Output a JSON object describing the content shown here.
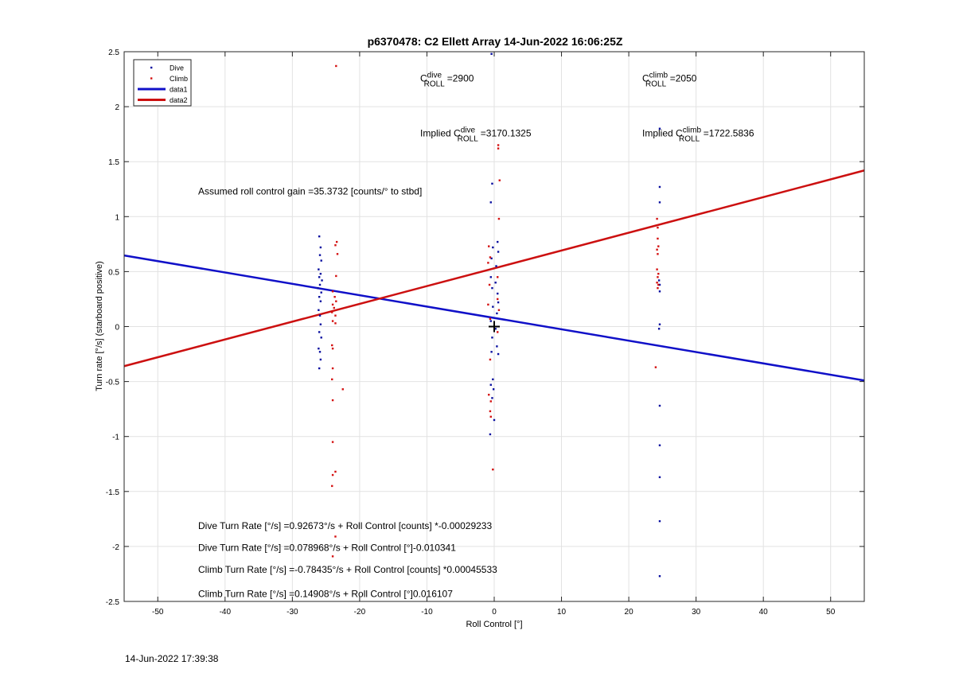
{
  "footer_timestamp": "14-Jun-2022 17:39:38",
  "chart_data": {
    "type": "scatter",
    "title": "p6370478: C2 Ellett Array 14-Jun-2022 16:06:25Z",
    "xlabel": "Roll Control [°]",
    "ylabel": "Turn rate [°/s] (starboard positive)",
    "xlim": [
      -55,
      55
    ],
    "ylim": [
      -2.5,
      2.5
    ],
    "xticks": [
      -50,
      -40,
      -30,
      -20,
      -10,
      0,
      10,
      20,
      30,
      40,
      50
    ],
    "yticks": [
      -2.5,
      -2,
      -1.5,
      -1,
      -0.5,
      0,
      0.5,
      1,
      1.5,
      2,
      2.5
    ],
    "grid": true,
    "legend_position": "top-left",
    "legend": [
      "Dive",
      "Climb",
      "data1",
      "data2"
    ],
    "colors": {
      "dive": "#0a10a0",
      "climb": "#d41010",
      "data1": "#1010c8",
      "data2": "#cc1010"
    },
    "series": [
      {
        "name": "Dive",
        "style": "points",
        "points": [
          [
            -26.0,
            0.82
          ],
          [
            -25.8,
            0.72
          ],
          [
            -25.9,
            0.65
          ],
          [
            -25.7,
            0.6
          ],
          [
            -26.1,
            0.52
          ],
          [
            -25.8,
            0.48
          ],
          [
            -26.0,
            0.45
          ],
          [
            -25.6,
            0.42
          ],
          [
            -25.9,
            0.38
          ],
          [
            -26.2,
            0.35
          ],
          [
            -25.7,
            0.31
          ],
          [
            -26.0,
            0.27
          ],
          [
            -25.8,
            0.23
          ],
          [
            -26.1,
            0.15
          ],
          [
            -25.9,
            0.1
          ],
          [
            -25.8,
            0.02
          ],
          [
            -26.0,
            -0.05
          ],
          [
            -25.7,
            -0.1
          ],
          [
            -26.1,
            -0.2
          ],
          [
            -25.9,
            -0.23
          ],
          [
            -25.8,
            -0.3
          ],
          [
            -26.0,
            -0.38
          ],
          [
            -0.4,
            2.48
          ],
          [
            -0.3,
            1.3
          ],
          [
            -0.5,
            1.13
          ],
          [
            0.5,
            0.77
          ],
          [
            -0.2,
            0.72
          ],
          [
            0.6,
            0.68
          ],
          [
            -0.4,
            0.62
          ],
          [
            0.3,
            0.55
          ],
          [
            -0.5,
            0.45
          ],
          [
            0.2,
            0.4
          ],
          [
            -0.3,
            0.35
          ],
          [
            0.5,
            0.3
          ],
          [
            0.6,
            0.22
          ],
          [
            -0.2,
            0.18
          ],
          [
            0.4,
            0.12
          ],
          [
            -0.5,
            0.05
          ],
          [
            0.2,
            -0.02
          ],
          [
            -0.3,
            -0.1
          ],
          [
            0.4,
            -0.18
          ],
          [
            -0.4,
            -0.23
          ],
          [
            0.6,
            -0.25
          ],
          [
            -0.2,
            -0.48
          ],
          [
            -0.5,
            -0.53
          ],
          [
            -0.1,
            -0.57
          ],
          [
            -0.3,
            -0.65
          ],
          [
            0.0,
            -0.85
          ],
          [
            -0.6,
            -0.98
          ],
          [
            24.6,
            1.8
          ],
          [
            24.6,
            1.27
          ],
          [
            24.6,
            1.13
          ],
          [
            24.5,
            0.42
          ],
          [
            24.6,
            0.38
          ],
          [
            24.6,
            0.32
          ],
          [
            24.6,
            0.02
          ],
          [
            24.5,
            -0.02
          ],
          [
            24.6,
            -0.72
          ],
          [
            24.6,
            -1.08
          ],
          [
            24.6,
            -1.37
          ],
          [
            24.6,
            -1.77
          ],
          [
            24.6,
            -2.27
          ]
        ]
      },
      {
        "name": "Climb",
        "style": "points",
        "points": [
          [
            -23.5,
            2.37
          ],
          [
            -23.4,
            0.77
          ],
          [
            -23.6,
            0.74
          ],
          [
            -23.3,
            0.66
          ],
          [
            -23.5,
            0.46
          ],
          [
            -24.0,
            0.32
          ],
          [
            -23.7,
            0.27
          ],
          [
            -23.5,
            0.23
          ],
          [
            -24.0,
            0.2
          ],
          [
            -23.8,
            0.17
          ],
          [
            -24.1,
            0.13
          ],
          [
            -23.6,
            0.1
          ],
          [
            -24.0,
            0.05
          ],
          [
            -23.6,
            0.03
          ],
          [
            -24.1,
            -0.17
          ],
          [
            -24.0,
            -0.2
          ],
          [
            -24.0,
            -0.38
          ],
          [
            -24.1,
            -0.48
          ],
          [
            -22.5,
            -0.57
          ],
          [
            -24.0,
            -0.67
          ],
          [
            -24.0,
            -1.05
          ],
          [
            -23.6,
            -1.32
          ],
          [
            -24.0,
            -1.35
          ],
          [
            -24.1,
            -1.45
          ],
          [
            -23.6,
            -1.91
          ],
          [
            -24.0,
            -2.09
          ],
          [
            0.6,
            1.65
          ],
          [
            0.6,
            1.62
          ],
          [
            0.8,
            1.33
          ],
          [
            0.7,
            0.98
          ],
          [
            -0.8,
            0.73
          ],
          [
            -0.6,
            0.63
          ],
          [
            -0.9,
            0.58
          ],
          [
            0.5,
            0.45
          ],
          [
            -0.7,
            0.38
          ],
          [
            0.5,
            0.25
          ],
          [
            -0.9,
            0.2
          ],
          [
            0.7,
            0.15
          ],
          [
            -0.6,
            0.07
          ],
          [
            0.5,
            -0.05
          ],
          [
            -0.6,
            -0.3
          ],
          [
            -0.8,
            -0.62
          ],
          [
            -0.5,
            -0.68
          ],
          [
            -0.6,
            -0.77
          ],
          [
            -0.5,
            -0.82
          ],
          [
            -0.2,
            -1.3
          ],
          [
            24.2,
            0.98
          ],
          [
            24.3,
            0.9
          ],
          [
            24.3,
            0.8
          ],
          [
            24.4,
            0.73
          ],
          [
            24.2,
            0.7
          ],
          [
            24.3,
            0.66
          ],
          [
            24.2,
            0.52
          ],
          [
            24.4,
            0.48
          ],
          [
            24.3,
            0.45
          ],
          [
            24.2,
            0.4
          ],
          [
            24.4,
            0.38
          ],
          [
            24.3,
            0.35
          ],
          [
            24.0,
            -0.37
          ]
        ]
      },
      {
        "name": "data1",
        "style": "line",
        "points": [
          [
            -55,
            0.647
          ],
          [
            55,
            -0.49
          ]
        ]
      },
      {
        "name": "data2",
        "style": "line",
        "points": [
          [
            -55,
            -0.36
          ],
          [
            55,
            1.42
          ]
        ]
      }
    ],
    "marker": {
      "x": 0,
      "y": 0,
      "symbol": "+"
    },
    "annotations": {
      "c_dive": {
        "x": -11,
        "y": 2.23,
        "base": "C",
        "sup": "dive",
        "sub": "ROLL",
        "value": "=2900"
      },
      "c_climb": {
        "x": 22,
        "y": 2.23,
        "base": "C",
        "sup": "climb",
        "sub": "ROLL",
        "value": "=2050"
      },
      "implied_dive": {
        "x": -11,
        "y": 1.73,
        "prefix": "Implied ",
        "base": "C",
        "sup": "dive",
        "sub": "ROLL",
        "value": "=3170.1325"
      },
      "implied_climb": {
        "x": 22,
        "y": 1.73,
        "prefix": "Implied ",
        "base": "C",
        "sup": "climb",
        "sub": "ROLL",
        "value": "=1722.5836"
      },
      "gain": {
        "x": -44,
        "y": 1.2,
        "text": "Assumed roll control gain =35.3732 [counts/° to stbd]"
      },
      "eq_dive_counts": {
        "x": -44,
        "y": -1.84,
        "text": "Dive Turn Rate [°/s] =0.92673°/s + Roll Control [counts] *-0.00029233"
      },
      "eq_dive_deg": {
        "x": -44,
        "y": -2.04,
        "text": "Dive Turn Rate [°/s] =0.078968°/s + Roll Control [°]-0.010341"
      },
      "eq_climb_counts": {
        "x": -44,
        "y": -2.24,
        "text": "Climb Turn Rate [°/s] =-0.78435°/s + Roll Control [counts] *0.00045533"
      },
      "eq_climb_deg": {
        "x": -44,
        "y": -2.46,
        "text": "Climb Turn Rate [°/s] =0.14908°/s + Roll Control [°]0.016107"
      }
    }
  }
}
